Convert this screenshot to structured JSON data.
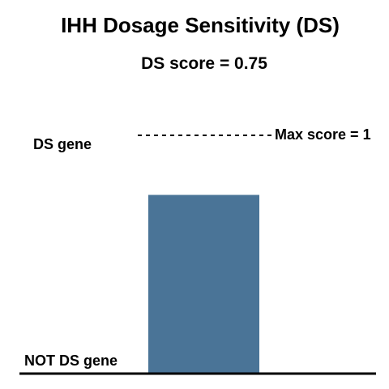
{
  "chart_data": {
    "type": "bar",
    "title": "IHH Dosage Sensitivity (DS)",
    "subtitle": "DS score = 0.75",
    "categories": [
      "IHH"
    ],
    "values": [
      0.75
    ],
    "ylim": [
      0,
      1
    ],
    "max_label": "Max score = 1",
    "top_label": "DS gene",
    "bottom_label": "NOT DS gene",
    "grid": false,
    "bar_color": "#4a7497",
    "reference_line_style": "dashed",
    "axis_color": "#000000"
  }
}
